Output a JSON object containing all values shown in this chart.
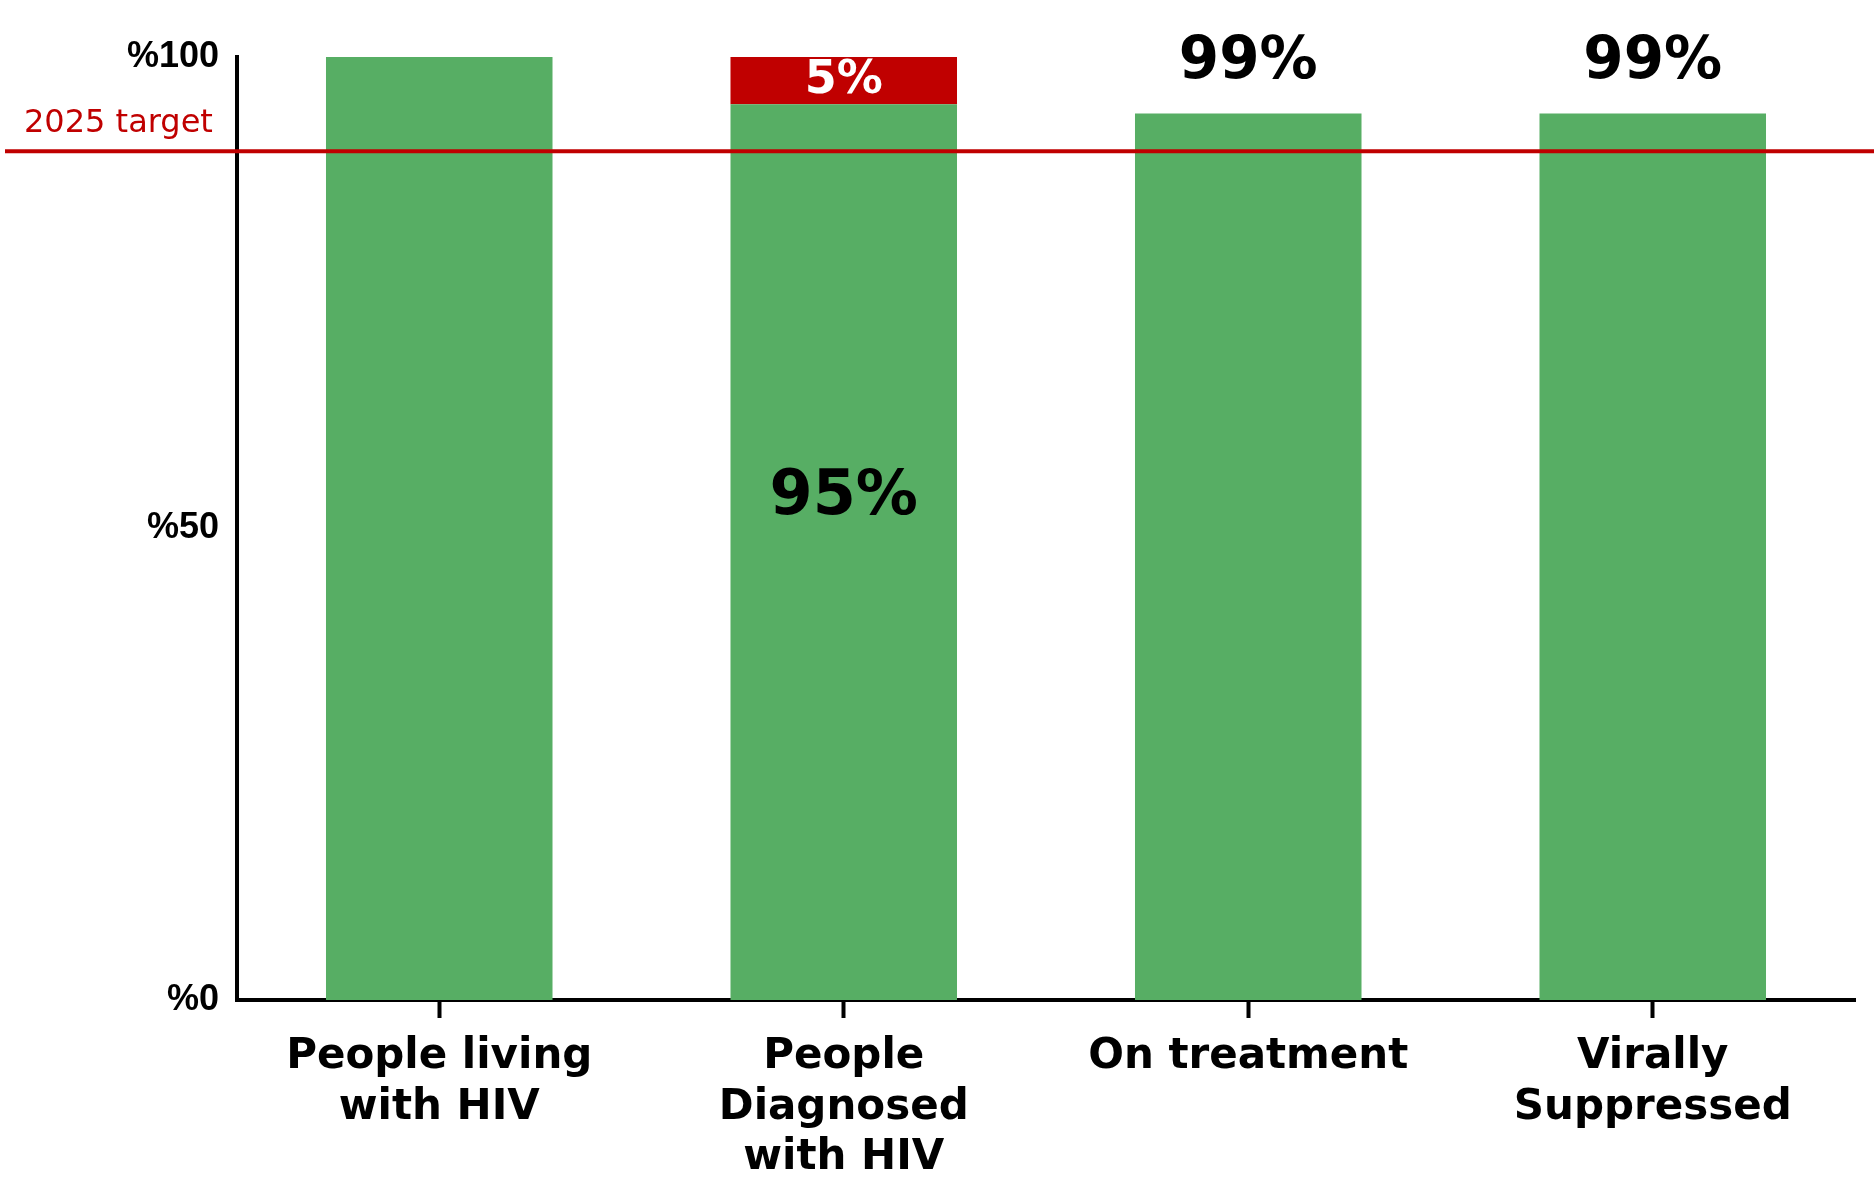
{
  "chart_data": {
    "type": "bar",
    "stacked": true,
    "categories": [
      "People living with HIV",
      "People Diagnosed with HIV",
      "On treatment",
      "Virally Suppressed"
    ],
    "series": [
      {
        "color": "#57ae64",
        "values": [
          100,
          95,
          94,
          94
        ],
        "value_labels": [
          null,
          "95%",
          null,
          null
        ]
      },
      {
        "color": "#c00000",
        "values": [
          null,
          5,
          null,
          null
        ],
        "value_labels": [
          null,
          "5%",
          null,
          null
        ]
      }
    ],
    "ylim": [
      0,
      100
    ],
    "yticks": [
      {
        "value": 0,
        "label": "%0"
      },
      {
        "value": 50,
        "label": "%50"
      },
      {
        "value": 100,
        "label": "%100"
      }
    ],
    "grid": false,
    "legend": false,
    "annotations": [
      {
        "text": "99%",
        "x": "On treatment",
        "y": 94
      },
      {
        "text": "99%",
        "x": "Virally Suppressed",
        "y": 94
      }
    ],
    "ref_lines": [
      {
        "axis": "y",
        "value": 90,
        "label": "2025 target",
        "color": "#c00000"
      }
    ]
  }
}
